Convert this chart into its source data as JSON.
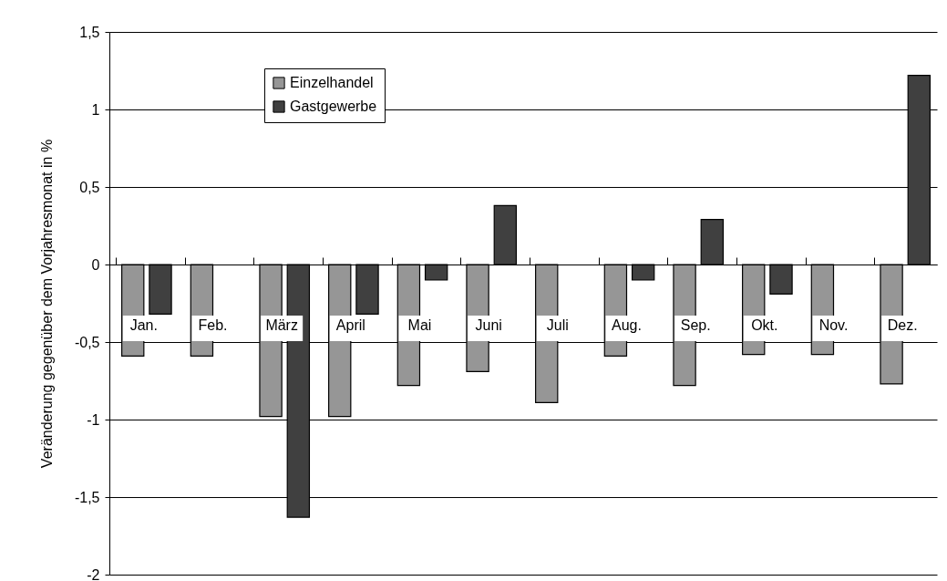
{
  "chart_data": {
    "type": "bar",
    "ylabel": "Veränderung gegenüber dem Vorjahresmonat in %",
    "categories": [
      "Jan.",
      "Feb.",
      "März",
      "April",
      "Mai",
      "Juni",
      "Juli",
      "Aug.",
      "Sep.",
      "Okt.",
      "Nov.",
      "Dez."
    ],
    "series": [
      {
        "name": "Einzelhandel",
        "color": "#969696",
        "values": [
          -0.59,
          -0.59,
          -0.98,
          -0.98,
          -0.78,
          -0.69,
          -0.89,
          -0.59,
          -0.78,
          -0.58,
          -0.58,
          -0.77
        ]
      },
      {
        "name": "Gastgewerbe",
        "color": "#404040",
        "values": [
          -0.32,
          0,
          -1.63,
          -0.32,
          -0.1,
          0.38,
          0,
          -0.1,
          0.29,
          -0.19,
          0,
          1.22
        ]
      }
    ],
    "ylim": [
      -2,
      1.5
    ],
    "yticks": [
      -2,
      {
        "value": -1.5,
        "label": "-1,5"
      },
      -1,
      {
        "value": -0.5,
        "label": "-0,5"
      },
      0,
      {
        "value": 0.5,
        "label": "0,5"
      },
      1,
      {
        "value": 1.5,
        "label": "1,5"
      }
    ],
    "grid": "y",
    "legend": "top left"
  }
}
